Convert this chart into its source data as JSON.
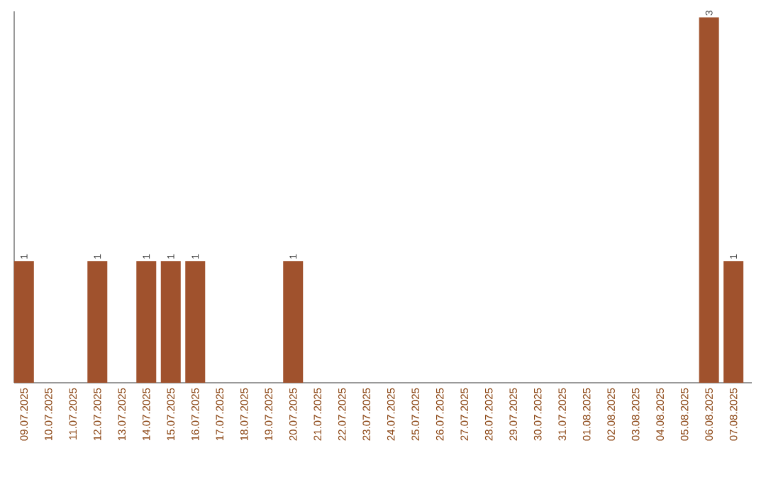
{
  "chart_data": {
    "type": "bar",
    "categories": [
      "09.07.2025",
      "10.07.2025",
      "11.07.2025",
      "12.07.2025",
      "13.07.2025",
      "14.07.2025",
      "15.07.2025",
      "16.07.2025",
      "17.07.2025",
      "18.07.2025",
      "19.07.2025",
      "20.07.2025",
      "21.07.2025",
      "22.07.2025",
      "23.07.2025",
      "24.07.2025",
      "25.07.2025",
      "26.07.2025",
      "27.07.2025",
      "28.07.2025",
      "29.07.2025",
      "30.07.2025",
      "31.07.2025",
      "01.08.2025",
      "02.08.2025",
      "03.08.2025",
      "04.08.2025",
      "05.08.2025",
      "06.08.2025",
      "07.08.2025"
    ],
    "values": [
      1,
      0,
      0,
      1,
      0,
      1,
      1,
      1,
      0,
      0,
      0,
      1,
      0,
      0,
      0,
      0,
      0,
      0,
      0,
      0,
      0,
      0,
      0,
      0,
      0,
      0,
      0,
      0,
      3,
      1
    ],
    "value_labels": [
      "1",
      null,
      null,
      "1",
      null,
      "1",
      "1",
      "1",
      null,
      null,
      null,
      "1",
      null,
      null,
      null,
      null,
      null,
      null,
      null,
      null,
      null,
      null,
      null,
      null,
      null,
      null,
      null,
      null,
      "3",
      "1"
    ],
    "color": "#a0522d",
    "ylim": [
      0,
      3.05
    ]
  }
}
